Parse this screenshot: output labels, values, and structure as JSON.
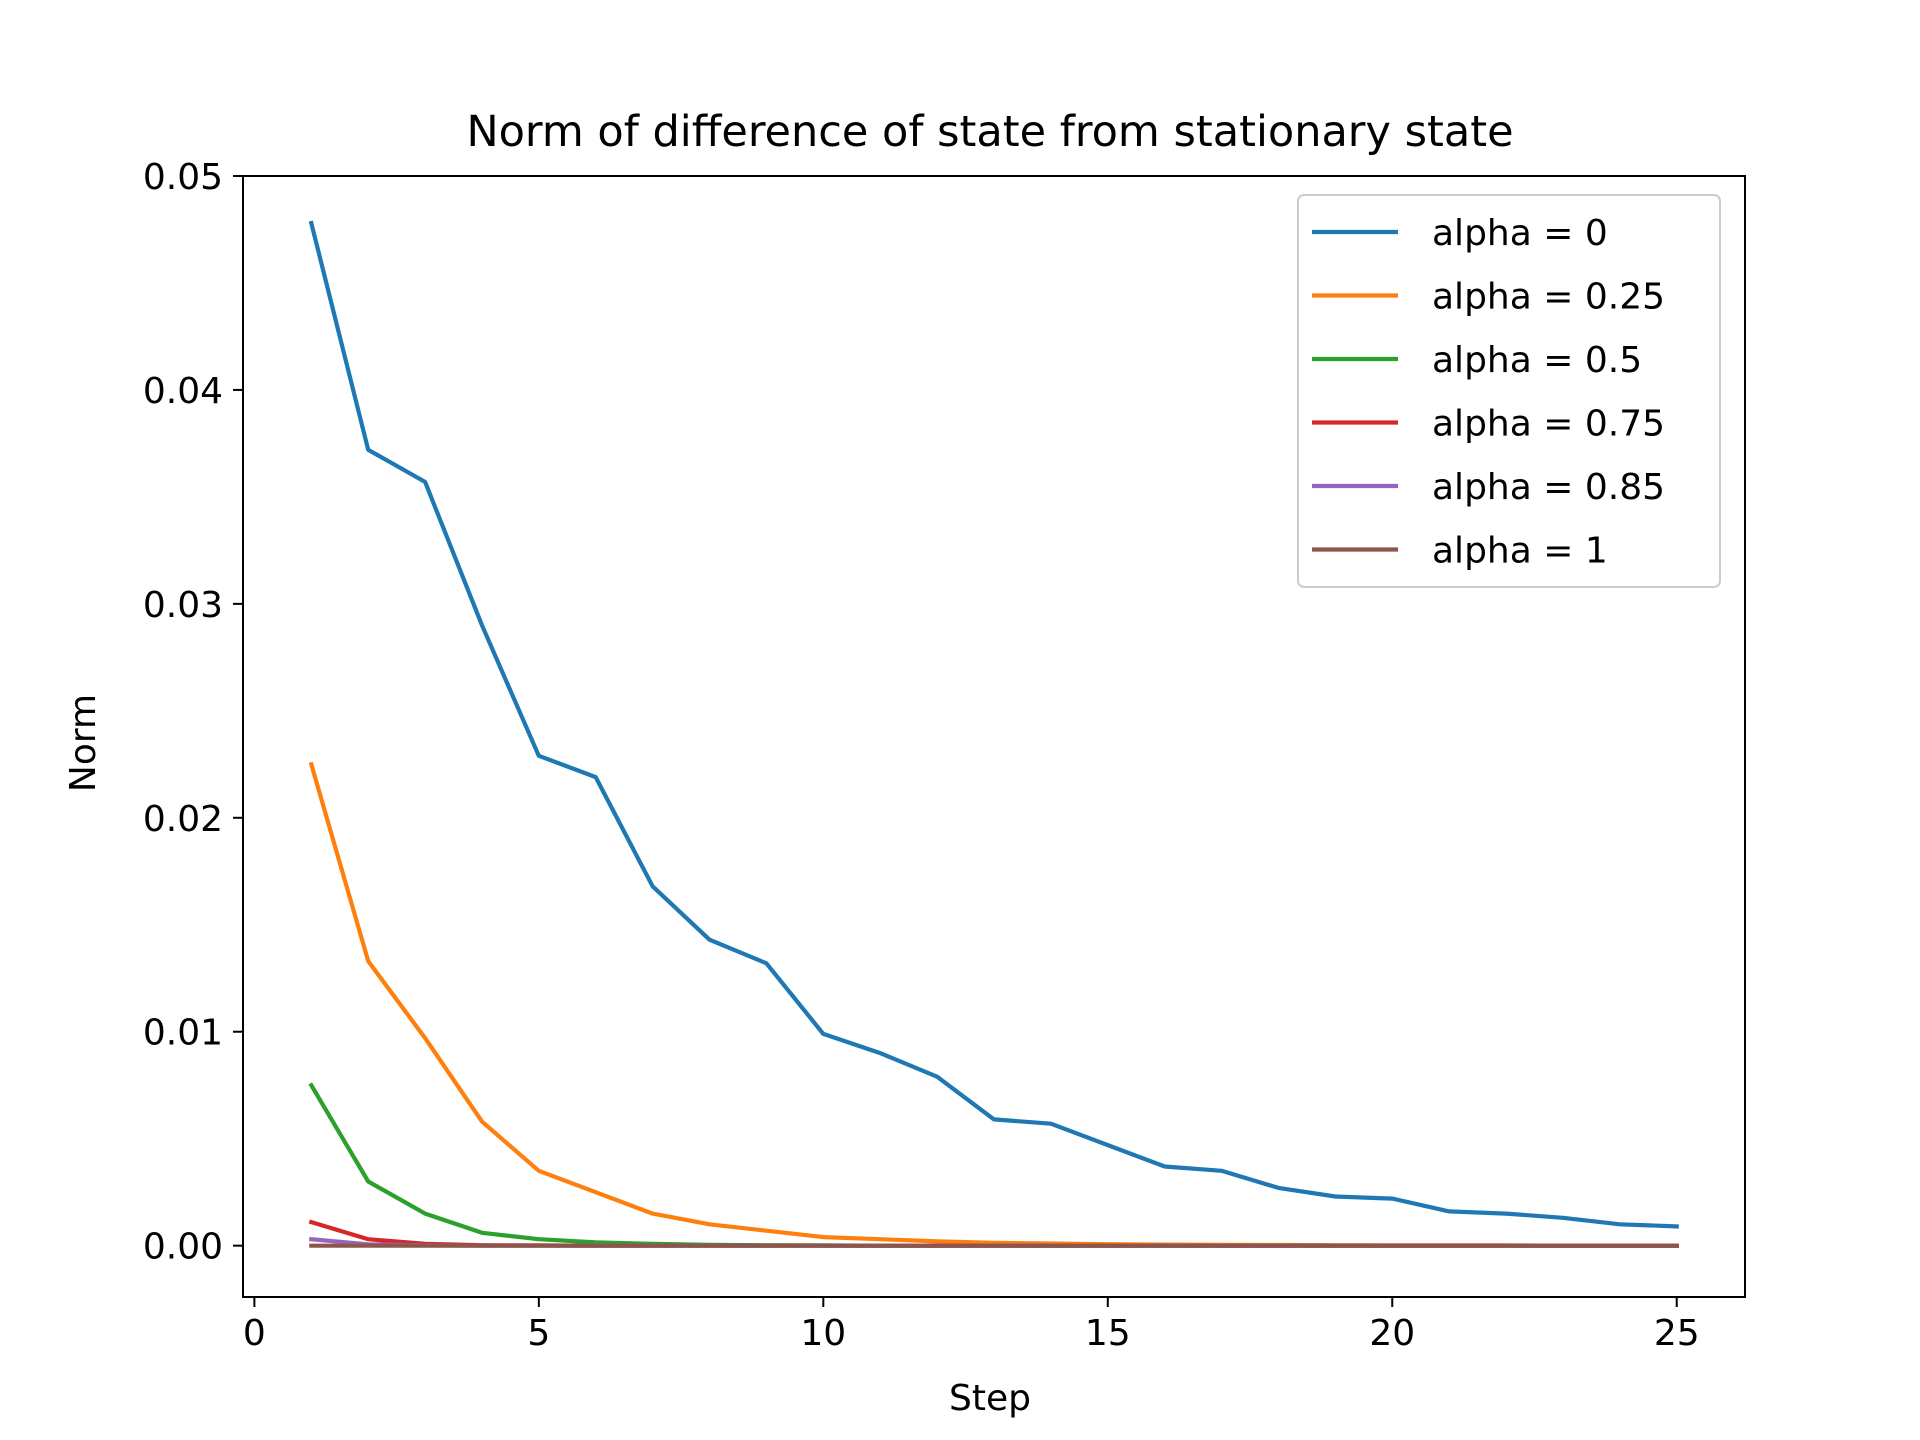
{
  "chart_data": {
    "type": "line",
    "title": "Norm of difference of state from stationary state",
    "xlabel": "Step",
    "ylabel": "Norm",
    "xlim": [
      -0.2,
      26.2
    ],
    "ylim": [
      -0.0024,
      0.05
    ],
    "xticks": [
      0,
      5,
      10,
      15,
      20,
      25
    ],
    "xtick_labels": [
      "0",
      "5",
      "10",
      "15",
      "20",
      "25"
    ],
    "yticks": [
      0.0,
      0.01,
      0.02,
      0.03,
      0.04,
      0.05
    ],
    "ytick_labels": [
      "0.00",
      "0.01",
      "0.02",
      "0.03",
      "0.04",
      "0.05"
    ],
    "grid": false,
    "legend_position": "top-right",
    "x": [
      1,
      2,
      3,
      4,
      5,
      6,
      7,
      8,
      9,
      10,
      11,
      12,
      13,
      14,
      15,
      16,
      17,
      18,
      19,
      20,
      21,
      22,
      23,
      24,
      25
    ],
    "series": [
      {
        "name": "alpha = 0",
        "color": "#1f77b4",
        "values": [
          0.0478,
          0.0372,
          0.0357,
          0.029,
          0.0229,
          0.0219,
          0.0168,
          0.0143,
          0.0132,
          0.0099,
          0.009,
          0.0079,
          0.0059,
          0.0057,
          0.0047,
          0.0037,
          0.0035,
          0.0027,
          0.0023,
          0.0022,
          0.0016,
          0.0015,
          0.0013,
          0.001,
          0.0009
        ]
      },
      {
        "name": "alpha = 0.25",
        "color": "#ff7f0e",
        "values": [
          0.0225,
          0.0133,
          0.0097,
          0.0058,
          0.0035,
          0.0025,
          0.0015,
          0.001,
          0.0007,
          0.0004,
          0.0003,
          0.0002,
          0.00013,
          0.0001,
          7e-05,
          5e-05,
          4e-05,
          3e-05,
          2e-05,
          1e-05,
          1e-05,
          1e-05,
          0.0,
          0.0,
          0.0
        ]
      },
      {
        "name": "alpha = 0.5",
        "color": "#2ca02c",
        "values": [
          0.0075,
          0.003,
          0.0015,
          0.0006,
          0.0003,
          0.00015,
          8e-05,
          4e-05,
          2e-05,
          1e-05,
          0.0,
          0.0,
          0.0,
          0.0,
          0.0,
          0.0,
          0.0,
          0.0,
          0.0,
          0.0,
          0.0,
          0.0,
          0.0,
          0.0,
          0.0
        ]
      },
      {
        "name": "alpha = 0.75",
        "color": "#d62728",
        "values": [
          0.0011,
          0.0003,
          8e-05,
          2e-05,
          1e-05,
          0.0,
          0.0,
          0.0,
          0.0,
          0.0,
          0.0,
          0.0,
          0.0,
          0.0,
          0.0,
          0.0,
          0.0,
          0.0,
          0.0,
          0.0,
          0.0,
          0.0,
          0.0,
          0.0,
          0.0
        ]
      },
      {
        "name": "alpha = 0.85",
        "color": "#9467bd",
        "values": [
          0.0003,
          6e-05,
          1e-05,
          0.0,
          0.0,
          0.0,
          0.0,
          0.0,
          0.0,
          0.0,
          0.0,
          0.0,
          0.0,
          0.0,
          0.0,
          0.0,
          0.0,
          0.0,
          0.0,
          0.0,
          0.0,
          0.0,
          0.0,
          0.0,
          0.0
        ]
      },
      {
        "name": "alpha = 1",
        "color": "#8c564b",
        "values": [
          0.0,
          0.0,
          0.0,
          0.0,
          0.0,
          0.0,
          0.0,
          0.0,
          0.0,
          0.0,
          0.0,
          0.0,
          0.0,
          0.0,
          0.0,
          0.0,
          0.0,
          0.0,
          0.0,
          0.0,
          0.0,
          0.0,
          0.0,
          0.0,
          0.0
        ]
      }
    ]
  }
}
